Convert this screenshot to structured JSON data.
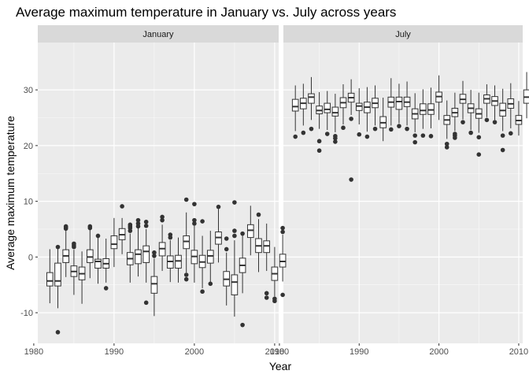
{
  "chart_data": {
    "type": "boxplot",
    "title": "Average maximum temperature in January vs. July across years",
    "xlabel": "Year",
    "ylabel": "Average maximum temperature",
    "xlim": [
      1980.5,
      2010.5
    ],
    "ylim": [
      -15.5,
      38.5
    ],
    "xticks": [
      1980,
      1990,
      2000,
      2010
    ],
    "yticks": [
      -10,
      0,
      10,
      20,
      30
    ],
    "grid": true,
    "panels": [
      {
        "name": "January",
        "boxes": [
          {
            "x": 1982,
            "q1": -5.2,
            "median": -4.3,
            "q3": -2.8,
            "low": -8.3,
            "high": 1.4,
            "outliers": []
          },
          {
            "x": 1983,
            "q1": -5.2,
            "median": -4.3,
            "q3": -1.1,
            "low": -9.2,
            "high": 1.8,
            "outliers": [
              -13.5,
              1.8
            ]
          },
          {
            "x": 1984,
            "q1": -1.0,
            "median": 0.2,
            "q3": 1.3,
            "low": -3.6,
            "high": 4.9,
            "outliers": [
              5.1,
              5.3,
              5.5
            ]
          },
          {
            "x": 1985,
            "q1": -3.5,
            "median": -2.6,
            "q3": -1.6,
            "low": -6.8,
            "high": 1.3,
            "outliers": [
              1.8,
              2.1,
              2.4
            ]
          },
          {
            "x": 1986,
            "q1": -4.1,
            "median": -3.0,
            "q3": -1.8,
            "low": -8.4,
            "high": 1.0,
            "outliers": []
          },
          {
            "x": 1987,
            "q1": -1.0,
            "median": 0.0,
            "q3": 1.3,
            "low": -3.8,
            "high": 5.0,
            "outliers": [
              5.2,
              5.5
            ]
          },
          {
            "x": 1988,
            "q1": -2.0,
            "median": -0.8,
            "q3": -0.4,
            "low": -4.8,
            "high": 3.5,
            "outliers": [
              3.8
            ]
          },
          {
            "x": 1989,
            "q1": -2.0,
            "median": -1.2,
            "q3": -0.3,
            "low": -4.6,
            "high": 3.3,
            "outliers": [
              -5.6
            ]
          },
          {
            "x": 1990,
            "q1": 1.5,
            "median": 2.3,
            "q3": 3.8,
            "low": -1.8,
            "high": 7.0,
            "outliers": []
          },
          {
            "x": 1991,
            "q1": 3.1,
            "median": 4.0,
            "q3": 5.1,
            "low": 0.5,
            "high": 7.0,
            "outliers": [
              9.1
            ]
          },
          {
            "x": 1992,
            "q1": -1.4,
            "median": -0.3,
            "q3": 0.8,
            "low": -4.6,
            "high": 4.2,
            "outliers": [
              4.7,
              5.2,
              5.5,
              5.8
            ]
          },
          {
            "x": 1993,
            "q1": -1.2,
            "median": 0.5,
            "q3": 1.3,
            "low": -3.5,
            "high": 5.2,
            "outliers": [
              5.5,
              6.0,
              6.6
            ]
          },
          {
            "x": 1994,
            "q1": -1.0,
            "median": 1.0,
            "q3": 2.0,
            "low": -4.6,
            "high": 5.0,
            "outliers": [
              -8.2,
              5.6,
              6.3
            ]
          },
          {
            "x": 1995,
            "q1": -6.5,
            "median": -4.8,
            "q3": -3.5,
            "low": -10.6,
            "high": -0.3,
            "outliers": [
              0.2,
              0.8
            ]
          },
          {
            "x": 1996,
            "q1": 0.2,
            "median": 1.5,
            "q3": 2.6,
            "low": -2.5,
            "high": 5.8,
            "outliers": [
              6.6,
              7.2
            ]
          },
          {
            "x": 1997,
            "q1": -2.0,
            "median": -0.8,
            "q3": 0.2,
            "low": -4.5,
            "high": 3.0,
            "outliers": [
              3.5,
              4.0
            ]
          },
          {
            "x": 1998,
            "q1": -2.0,
            "median": -0.7,
            "q3": 0.3,
            "low": -4.6,
            "high": 3.5,
            "outliers": []
          },
          {
            "x": 1999,
            "q1": 1.5,
            "median": 2.8,
            "q3": 3.8,
            "low": -2.8,
            "high": 8.0,
            "outliers": [
              -3.2,
              -4.0,
              10.3
            ]
          },
          {
            "x": 2000,
            "q1": -1.2,
            "median": 0.1,
            "q3": 1.2,
            "low": -4.6,
            "high": 5.6,
            "outliers": [
              6.0,
              6.6,
              9.5
            ]
          },
          {
            "x": 2001,
            "q1": -1.9,
            "median": -0.9,
            "q3": 0.3,
            "low": -5.6,
            "high": 3.8,
            "outliers": [
              -6.2,
              6.4
            ]
          },
          {
            "x": 2002,
            "q1": -1.1,
            "median": 0.2,
            "q3": 1.2,
            "low": -4.5,
            "high": 4.7,
            "outliers": [
              -4.8
            ]
          },
          {
            "x": 2003,
            "q1": 2.3,
            "median": 3.5,
            "q3": 4.5,
            "low": -1.0,
            "high": 8.6,
            "outliers": [
              9.0
            ]
          },
          {
            "x": 2004,
            "q1": -5.2,
            "median": -4.0,
            "q3": -2.6,
            "low": -8.7,
            "high": 0.8,
            "outliers": [
              1.4,
              3.3
            ]
          },
          {
            "x": 2005,
            "q1": -6.8,
            "median": -4.5,
            "q3": -3.2,
            "low": -10.7,
            "high": 3.0,
            "outliers": [
              3.8,
              4.7,
              9.8
            ]
          },
          {
            "x": 2006,
            "q1": -2.8,
            "median": -1.5,
            "q3": -0.2,
            "low": -6.5,
            "high": 3.8,
            "outliers": [
              -12.2,
              4.2
            ]
          },
          {
            "x": 2007,
            "q1": 3.5,
            "median": 4.8,
            "q3": 5.8,
            "low": 0.3,
            "high": 9.2,
            "outliers": []
          },
          {
            "x": 2008,
            "q1": 0.8,
            "median": 2.0,
            "q3": 3.3,
            "low": -2.7,
            "high": 6.8,
            "outliers": [
              7.6
            ]
          },
          {
            "x": 2009,
            "q1": 0.8,
            "median": 2.0,
            "q3": 2.9,
            "low": -2.5,
            "high": 6.0,
            "outliers": [
              -6.5,
              -7.3
            ]
          },
          {
            "x": 2010,
            "q1": -4.2,
            "median": -3.0,
            "q3": -1.8,
            "low": -7.1,
            "high": 1.8,
            "outliers": [
              -7.5,
              -7.9
            ]
          },
          {
            "x": 2011,
            "q1": -1.8,
            "median": -0.8,
            "q3": 0.5,
            "low": -4.4,
            "high": 4.0,
            "outliers": [
              -6.8,
              4.5,
              5.2
            ]
          }
        ]
      },
      {
        "name": "July",
        "boxes": [
          {
            "x": 1982,
            "q1": 26.2,
            "median": 27.0,
            "q3": 28.3,
            "low": 22.6,
            "high": 30.8,
            "outliers": [
              21.6
            ]
          },
          {
            "x": 1983,
            "q1": 26.6,
            "median": 27.6,
            "q3": 28.5,
            "low": 23.6,
            "high": 31.1,
            "outliers": [
              22.3
            ]
          },
          {
            "x": 1984,
            "q1": 27.6,
            "median": 28.7,
            "q3": 29.3,
            "low": 24.6,
            "high": 32.3,
            "outliers": [
              23.0
            ]
          },
          {
            "x": 1985,
            "q1": 25.7,
            "median": 26.3,
            "q3": 27.1,
            "low": 23.0,
            "high": 29.6,
            "outliers": [
              20.8,
              19.1
            ]
          },
          {
            "x": 1986,
            "q1": 25.9,
            "median": 26.5,
            "q3": 27.6,
            "low": 22.8,
            "high": 29.8,
            "outliers": [
              22.1
            ]
          },
          {
            "x": 1987,
            "q1": 25.3,
            "median": 25.9,
            "q3": 26.9,
            "low": 22.4,
            "high": 29.3,
            "outliers": [
              21.7,
              21.3,
              20.7
            ]
          },
          {
            "x": 1988,
            "q1": 26.8,
            "median": 27.7,
            "q3": 28.6,
            "low": 23.8,
            "high": 31.0,
            "outliers": [
              23.2
            ]
          },
          {
            "x": 1989,
            "q1": 27.8,
            "median": 28.6,
            "q3": 29.4,
            "low": 25.5,
            "high": 31.9,
            "outliers": [
              24.8,
              13.9
            ]
          },
          {
            "x": 1990,
            "q1": 26.3,
            "median": 27.1,
            "q3": 27.6,
            "low": 23.8,
            "high": 30.3,
            "outliers": [
              22.0
            ]
          },
          {
            "x": 1991,
            "q1": 25.9,
            "median": 26.9,
            "q3": 27.8,
            "low": 22.5,
            "high": 30.5,
            "outliers": [
              21.6
            ]
          },
          {
            "x": 1992,
            "q1": 26.8,
            "median": 27.6,
            "q3": 28.5,
            "low": 23.6,
            "high": 30.8,
            "outliers": [
              23.0
            ]
          },
          {
            "x": 1993,
            "q1": 23.2,
            "median": 24.1,
            "q3": 25.2,
            "low": 20.8,
            "high": 28.6,
            "outliers": []
          },
          {
            "x": 1994,
            "q1": 26.9,
            "median": 27.8,
            "q3": 28.7,
            "low": 23.6,
            "high": 32.1,
            "outliers": [
              22.9
            ]
          },
          {
            "x": 1995,
            "q1": 26.5,
            "median": 27.9,
            "q3": 28.7,
            "low": 24.0,
            "high": 31.1,
            "outliers": [
              23.5
            ]
          },
          {
            "x": 1996,
            "q1": 27.0,
            "median": 27.8,
            "q3": 28.7,
            "low": 23.6,
            "high": 31.5,
            "outliers": [
              23.0
            ]
          },
          {
            "x": 1997,
            "q1": 24.8,
            "median": 25.7,
            "q3": 26.6,
            "low": 22.4,
            "high": 29.4,
            "outliers": [
              21.8,
              20.6
            ]
          },
          {
            "x": 1998,
            "q1": 25.6,
            "median": 26.3,
            "q3": 27.5,
            "low": 23.0,
            "high": 30.1,
            "outliers": [
              21.8
            ]
          },
          {
            "x": 1999,
            "q1": 25.6,
            "median": 26.4,
            "q3": 27.5,
            "low": 23.1,
            "high": 30.4,
            "outliers": [
              21.7
            ]
          },
          {
            "x": 2000,
            "q1": 27.8,
            "median": 28.8,
            "q3": 29.6,
            "low": 24.6,
            "high": 32.6,
            "outliers": []
          },
          {
            "x": 2001,
            "q1": 23.8,
            "median": 24.6,
            "q3": 25.4,
            "low": 21.2,
            "high": 28.1,
            "outliers": [
              20.3,
              19.7
            ]
          },
          {
            "x": 2002,
            "q1": 25.2,
            "median": 25.9,
            "q3": 26.7,
            "low": 22.6,
            "high": 29.5,
            "outliers": [
              22.1,
              21.8,
              21.4
            ]
          },
          {
            "x": 2003,
            "q1": 27.6,
            "median": 28.3,
            "q3": 29.2,
            "low": 24.7,
            "high": 31.6,
            "outliers": [
              24.2
            ]
          },
          {
            "x": 2004,
            "q1": 25.9,
            "median": 26.7,
            "q3": 27.5,
            "low": 22.8,
            "high": 30.0,
            "outliers": [
              22.3
            ]
          },
          {
            "x": 2005,
            "q1": 24.9,
            "median": 25.7,
            "q3": 26.6,
            "low": 22.3,
            "high": 29.5,
            "outliers": [
              21.5,
              18.4
            ]
          },
          {
            "x": 2006,
            "q1": 27.6,
            "median": 28.4,
            "q3": 29.1,
            "low": 25.1,
            "high": 31.0,
            "outliers": [
              24.6
            ]
          },
          {
            "x": 2007,
            "q1": 27.2,
            "median": 28.0,
            "q3": 28.8,
            "low": 24.6,
            "high": 30.8,
            "outliers": [
              24.2
            ]
          },
          {
            "x": 2008,
            "q1": 25.3,
            "median": 26.3,
            "q3": 27.6,
            "low": 22.6,
            "high": 30.2,
            "outliers": [
              21.8,
              19.2
            ]
          },
          {
            "x": 2009,
            "q1": 26.7,
            "median": 27.5,
            "q3": 28.4,
            "low": 23.1,
            "high": 31.2,
            "outliers": [
              22.2
            ]
          },
          {
            "x": 2010,
            "q1": 23.8,
            "median": 24.5,
            "q3": 25.4,
            "low": 21.8,
            "high": 28.0,
            "outliers": []
          },
          {
            "x": 2011,
            "q1": 27.6,
            "median": 28.7,
            "q3": 30.0,
            "low": 24.9,
            "high": 33.2,
            "outliers": []
          }
        ]
      }
    ],
    "colors": {
      "panel_background": "#ebebeb",
      "strip_background": "#d9d9d9",
      "grid_major": "#ffffff",
      "box_fill": "#ffffff",
      "box_line": "#333333",
      "outlier": "#333333",
      "tick_text": "#4d4d4d"
    }
  }
}
